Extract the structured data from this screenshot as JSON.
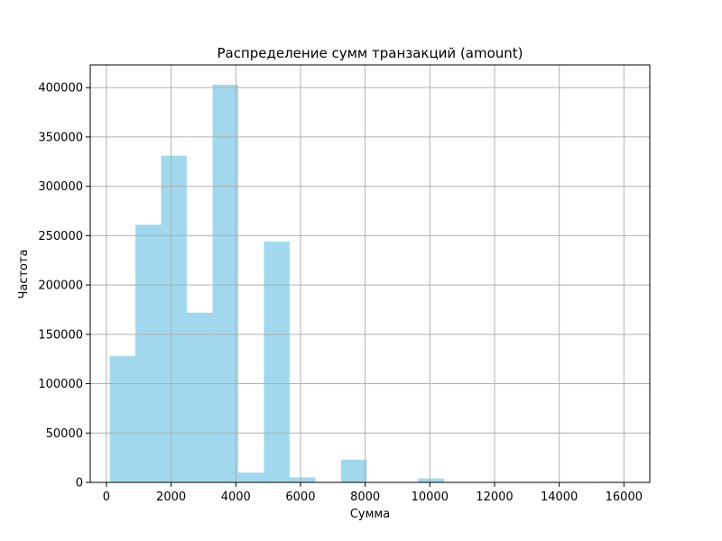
{
  "chart_data": {
    "type": "bar",
    "title": "Распределение сумм транзакций (amount)",
    "xlabel": "Сумма",
    "ylabel": "Частота",
    "xlim": [
      -500,
      16800
    ],
    "ylim": [
      0,
      423000
    ],
    "x_ticks": [
      0,
      2000,
      4000,
      6000,
      8000,
      10000,
      12000,
      14000,
      16000
    ],
    "y_ticks": [
      0,
      50000,
      100000,
      150000,
      200000,
      250000,
      300000,
      350000,
      400000
    ],
    "grid": true,
    "bar_color": "#a1d8ed",
    "bins": [
      {
        "x0": 100,
        "x1": 895,
        "value": 128000
      },
      {
        "x0": 895,
        "x1": 1690,
        "value": 261000
      },
      {
        "x0": 1690,
        "x1": 2485,
        "value": 331000
      },
      {
        "x0": 2485,
        "x1": 3280,
        "value": 172000
      },
      {
        "x0": 3280,
        "x1": 4075,
        "value": 403000
      },
      {
        "x0": 4075,
        "x1": 4870,
        "value": 10000
      },
      {
        "x0": 4870,
        "x1": 5665,
        "value": 244000
      },
      {
        "x0": 5665,
        "x1": 6460,
        "value": 5000
      },
      {
        "x0": 6460,
        "x1": 7255,
        "value": 0
      },
      {
        "x0": 7255,
        "x1": 8050,
        "value": 23000
      },
      {
        "x0": 8050,
        "x1": 8845,
        "value": 0
      },
      {
        "x0": 8845,
        "x1": 9640,
        "value": 0
      },
      {
        "x0": 9640,
        "x1": 10435,
        "value": 4000
      },
      {
        "x0": 10435,
        "x1": 11230,
        "value": 0
      },
      {
        "x0": 11230,
        "x1": 12025,
        "value": 0
      },
      {
        "x0": 12025,
        "x1": 12820,
        "value": 0
      },
      {
        "x0": 12820,
        "x1": 13615,
        "value": 0
      },
      {
        "x0": 13615,
        "x1": 14410,
        "value": 0
      },
      {
        "x0": 14410,
        "x1": 15205,
        "value": 0
      },
      {
        "x0": 15205,
        "x1": 16000,
        "value": 500
      }
    ]
  }
}
